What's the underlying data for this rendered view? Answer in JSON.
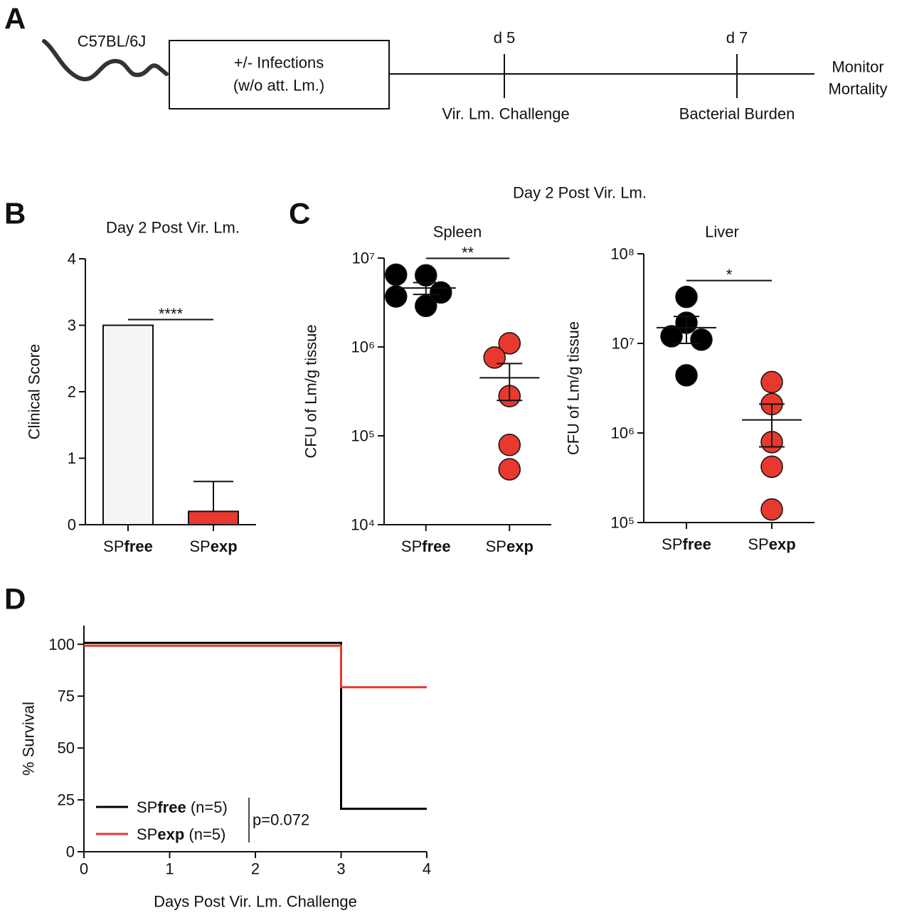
{
  "panel_a": {
    "label": "A",
    "mouse": "C57BL/6J",
    "box": [
      "+/- Infections",
      "(w/o att. Lm.)"
    ],
    "timepoints": [
      {
        "day": "d 5",
        "event": "Vir. Lm. Challenge"
      },
      {
        "day": "d 7",
        "event": "Bacterial Burden"
      }
    ],
    "end": [
      "Monitor",
      "Mortality"
    ]
  },
  "chart_data": [
    {
      "type": "bar",
      "panel_label": "B",
      "title": "Day 2 Post Vir. Lm.",
      "ylabel": "Clinical Score",
      "categories": [
        "SPfree",
        "SPexp"
      ],
      "values": [
        3,
        0.2
      ],
      "errors": [
        0,
        0.45
      ],
      "colors": [
        "#f5f5f5",
        "#e8392e"
      ],
      "ylim": [
        0,
        4
      ],
      "yticks": [
        0,
        1,
        2,
        3,
        4
      ],
      "significance": "****"
    },
    {
      "type": "scatter",
      "panel_label": "C",
      "suptitle": "Day 2 Post Vir. Lm.",
      "title": "Spleen",
      "ylabel": "CFU of Lm/g tissue",
      "categories": [
        "SPfree",
        "SPexp"
      ],
      "log": true,
      "ylim": [
        10000,
        10000000
      ],
      "yticks": [
        {
          "value": 10000,
          "label": "10⁴"
        },
        {
          "value": 100000,
          "label": "10⁵"
        },
        {
          "value": 1000000,
          "label": "10⁶"
        },
        {
          "value": 10000000,
          "label": "10⁷"
        }
      ],
      "series": [
        {
          "color": "#000000",
          "values": [
            6400000,
            6500000,
            2900000,
            3700000,
            4100000
          ],
          "mean": 4600000,
          "sem": 700000
        },
        {
          "color": "#e8392e",
          "values": [
            1100000,
            760000,
            280000,
            79000,
            42000
          ],
          "mean": 450000,
          "sem": 200000
        }
      ],
      "significance": "**"
    },
    {
      "type": "scatter",
      "title": "Liver",
      "ylabel": "CFU of Lm/g tissue",
      "categories": [
        "SPfree",
        "SPexp"
      ],
      "log": true,
      "ylim": [
        100000,
        100000000
      ],
      "yticks": [
        {
          "value": 100000,
          "label": "10⁵"
        },
        {
          "value": 1000000,
          "label": "10⁶"
        },
        {
          "value": 10000000,
          "label": "10⁷"
        },
        {
          "value": 100000000,
          "label": "10⁸"
        }
      ],
      "series": [
        {
          "color": "#000000",
          "values": [
            33000000,
            17000000,
            12000000,
            11000000,
            4400000
          ],
          "mean": 15000000,
          "sem": 5000000
        },
        {
          "color": "#e8392e",
          "values": [
            3700000,
            2100000,
            790000,
            420000,
            140000
          ],
          "mean": 1400000,
          "sem": 700000
        }
      ],
      "significance": "*"
    },
    {
      "type": "line",
      "panel_label": "D",
      "xlabel": "Days Post Vir. Lm. Challenge",
      "ylabel": "% Survival",
      "x": [
        0,
        3,
        3,
        4
      ],
      "xlim": [
        0,
        4
      ],
      "xticks": [
        0,
        1,
        2,
        3,
        4
      ],
      "ylim": [
        0,
        109
      ],
      "yticks": [
        0,
        25,
        50,
        75,
        100
      ],
      "series": [
        {
          "name": "SPfree (n=5)",
          "color": "#000000",
          "values": [
            100,
            100,
            20,
            20
          ]
        },
        {
          "name": "SPexp (n=5)",
          "color": "#e8392e",
          "values": [
            100,
            100,
            80,
            80
          ]
        }
      ],
      "annotation": "p=0.072"
    }
  ]
}
